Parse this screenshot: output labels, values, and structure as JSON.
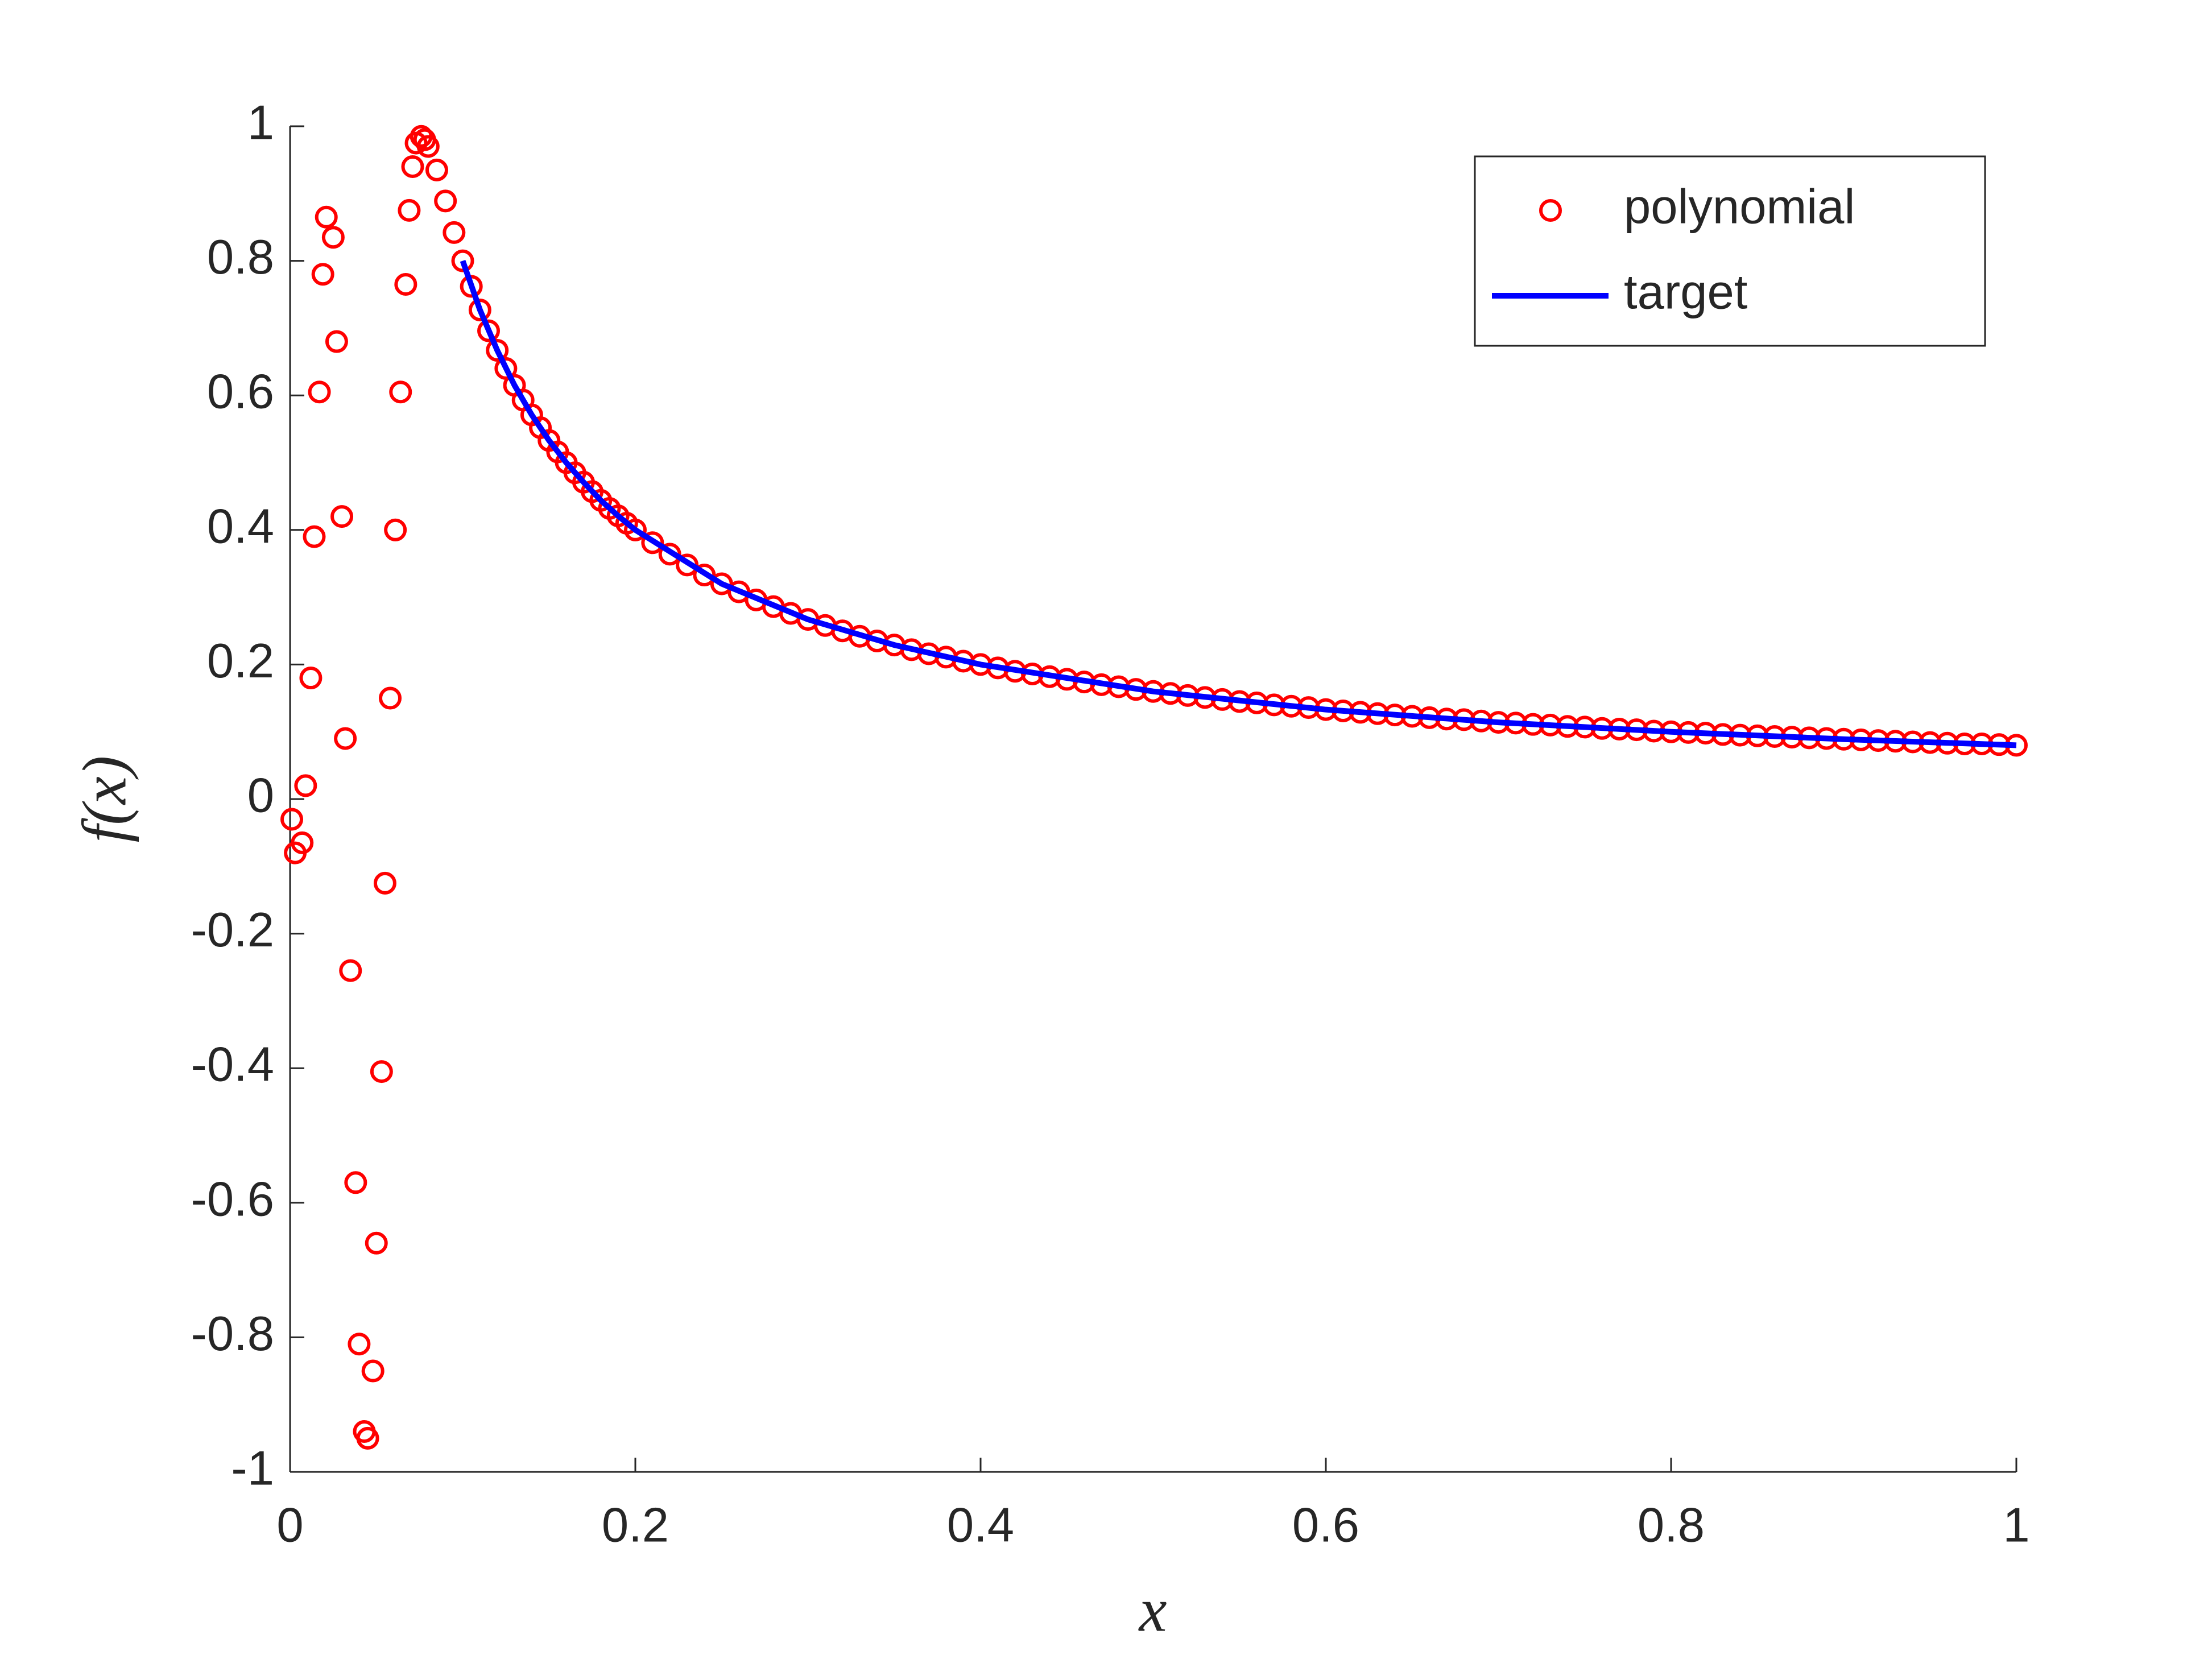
{
  "chart_data": {
    "type": "line",
    "xlabel": "x",
    "ylabel": "f(x)",
    "xlim": [
      0,
      1
    ],
    "ylim": [
      -1,
      1
    ],
    "xticks": [
      0,
      0.2,
      0.4,
      0.6,
      0.8,
      1
    ],
    "yticks": [
      -1,
      -0.8,
      -0.6,
      -0.4,
      -0.2,
      0,
      0.2,
      0.4,
      0.6,
      0.8,
      1
    ],
    "grid": false,
    "legend": "upper right",
    "series": [
      {
        "name": "polynomial",
        "color": "#ff0000",
        "style": "markers",
        "x": [
          0.001,
          0.003,
          0.007,
          0.009,
          0.012,
          0.014,
          0.017,
          0.019,
          0.021,
          0.025,
          0.027,
          0.03,
          0.032,
          0.035,
          0.038,
          0.04,
          0.043,
          0.045,
          0.048,
          0.05,
          0.053,
          0.055,
          0.058,
          0.061,
          0.064,
          0.067,
          0.069,
          0.071,
          0.073,
          0.076,
          0.078,
          0.08,
          0.085,
          0.09,
          0.095,
          0.1,
          0.105,
          0.11,
          0.115,
          0.12,
          0.125,
          0.13,
          0.135,
          0.14,
          0.145,
          0.15,
          0.155,
          0.16,
          0.165,
          0.17,
          0.175,
          0.18,
          0.185,
          0.19,
          0.195,
          0.2,
          0.21,
          0.22,
          0.23,
          0.24,
          0.25,
          0.26,
          0.27,
          0.28,
          0.29,
          0.3,
          0.31,
          0.32,
          0.33,
          0.34,
          0.35,
          0.36,
          0.37,
          0.38,
          0.39,
          0.4,
          0.41,
          0.42,
          0.43,
          0.44,
          0.45,
          0.46,
          0.47,
          0.48,
          0.49,
          0.5,
          0.51,
          0.52,
          0.53,
          0.54,
          0.55,
          0.56,
          0.57,
          0.58,
          0.59,
          0.6,
          0.61,
          0.62,
          0.63,
          0.64,
          0.65,
          0.66,
          0.67,
          0.68,
          0.69,
          0.7,
          0.71,
          0.72,
          0.73,
          0.74,
          0.75,
          0.76,
          0.77,
          0.78,
          0.79,
          0.8,
          0.81,
          0.82,
          0.83,
          0.84,
          0.85,
          0.86,
          0.87,
          0.88,
          0.89,
          0.9,
          0.91,
          0.92,
          0.93,
          0.94,
          0.95,
          0.96,
          0.97,
          0.98,
          0.99,
          1
        ],
        "values": [
          -0.03,
          -0.08,
          -0.065,
          0.02,
          0.18,
          0.39,
          0.605,
          0.78,
          0.865,
          0.835,
          0.68,
          0.42,
          0.09,
          -0.255,
          -0.57,
          -0.81,
          -0.94,
          -0.95,
          -0.85,
          -0.66,
          -0.405,
          -0.125,
          0.15,
          0.4,
          0.605,
          0.765,
          0.875,
          0.94,
          0.975,
          0.985,
          0.98,
          0.97,
          0.935,
          0.889,
          0.842,
          0.8,
          0.762,
          0.727,
          0.696,
          0.667,
          0.64,
          0.615,
          0.593,
          0.571,
          0.552,
          0.533,
          0.516,
          0.5,
          0.485,
          0.471,
          0.457,
          0.444,
          0.432,
          0.421,
          0.41,
          0.4,
          0.381,
          0.364,
          0.348,
          0.333,
          0.32,
          0.308,
          0.296,
          0.286,
          0.276,
          0.267,
          0.258,
          0.25,
          0.242,
          0.235,
          0.229,
          0.222,
          0.216,
          0.211,
          0.205,
          0.2,
          0.195,
          0.19,
          0.186,
          0.182,
          0.178,
          0.174,
          0.17,
          0.167,
          0.163,
          0.16,
          0.157,
          0.154,
          0.151,
          0.148,
          0.145,
          0.143,
          0.14,
          0.138,
          0.136,
          0.133,
          0.131,
          0.129,
          0.127,
          0.125,
          0.123,
          0.121,
          0.119,
          0.118,
          0.116,
          0.114,
          0.113,
          0.111,
          0.11,
          0.108,
          0.107,
          0.105,
          0.104,
          0.103,
          0.101,
          0.1,
          0.099,
          0.098,
          0.096,
          0.095,
          0.094,
          0.093,
          0.092,
          0.091,
          0.09,
          0.089,
          0.088,
          0.087,
          0.086,
          0.085,
          0.084,
          0.083,
          0.082,
          0.082,
          0.081,
          0.08
        ]
      },
      {
        "name": "target",
        "color": "#0000ff",
        "style": "line",
        "x": [
          0.1,
          0.11,
          0.12,
          0.13,
          0.14,
          0.15,
          0.16,
          0.17,
          0.18,
          0.19,
          0.2,
          0.25,
          0.3,
          0.35,
          0.4,
          0.5,
          0.6,
          0.7,
          0.8,
          0.9,
          1
        ],
        "values": [
          0.8,
          0.727,
          0.667,
          0.615,
          0.571,
          0.533,
          0.5,
          0.471,
          0.444,
          0.421,
          0.4,
          0.32,
          0.267,
          0.229,
          0.2,
          0.16,
          0.133,
          0.114,
          0.1,
          0.089,
          0.08
        ]
      }
    ]
  }
}
